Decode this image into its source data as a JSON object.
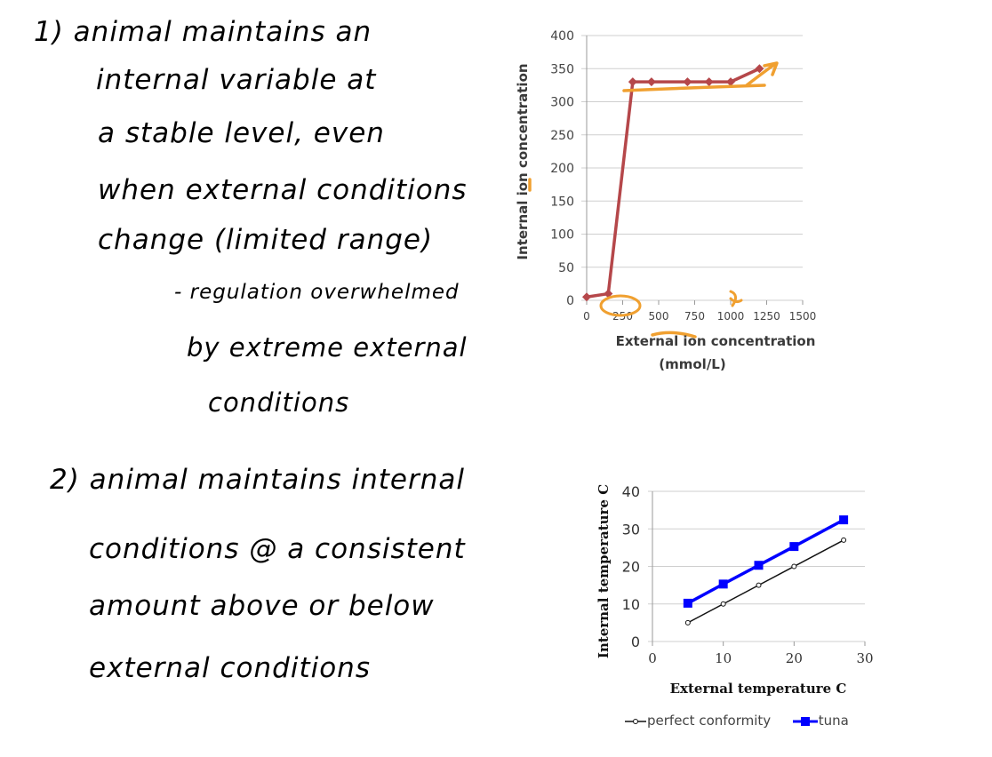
{
  "notes": {
    "block1": [
      "1) animal maintains an",
      "internal variable at",
      "a stable level, even",
      "when external conditions",
      "change (limited range)",
      "- regulation overwhelmed",
      "by extreme external",
      "conditions"
    ],
    "block2": [
      "2) animal maintains internal",
      "conditions @ a consistent",
      "amount above or below",
      "external conditions"
    ]
  },
  "colors": {
    "ion_line": "#b5474a",
    "annotation": "#f0a030",
    "tuna": "#0000ff",
    "conformity": "#111111"
  },
  "chart_data": [
    {
      "type": "line",
      "title": "",
      "xlabel": "External ion concentration (mmol/L)",
      "ylabel": "Internal ion concentration",
      "xlim": [
        0,
        1500
      ],
      "ylim": [
        0,
        400
      ],
      "x_ticks": [
        "0",
        "250",
        "500",
        "750",
        "1000",
        "1250",
        "1500"
      ],
      "y_ticks": [
        "0",
        "50",
        "100",
        "150",
        "200",
        "250",
        "300",
        "350",
        "400"
      ],
      "grid": true,
      "series": [
        {
          "points": [
            [
              0,
              5
            ],
            [
              150,
              10
            ],
            [
              320,
              330
            ],
            [
              450,
              330
            ],
            [
              700,
              330
            ],
            [
              850,
              330
            ],
            [
              1000,
              330
            ],
            [
              1200,
              350
            ]
          ]
        }
      ]
    },
    {
      "type": "line",
      "title": "",
      "xlabel": "External temperature C",
      "ylabel": "Internal temperature C",
      "xlim": [
        0,
        30
      ],
      "ylim": [
        0,
        40
      ],
      "x_ticks": [
        "0",
        "10",
        "20",
        "30"
      ],
      "y_ticks": [
        "0",
        "10",
        "20",
        "30",
        "40"
      ],
      "grid": true,
      "legend_position": "bottom",
      "series": [
        {
          "name": "perfect conformity",
          "points": [
            [
              5,
              5
            ],
            [
              10,
              10
            ],
            [
              15,
              15
            ],
            [
              20,
              20
            ],
            [
              27,
              27
            ]
          ]
        },
        {
          "name": "tuna",
          "points": [
            [
              5,
              10.2
            ],
            [
              10,
              15.3
            ],
            [
              15,
              20.3
            ],
            [
              20,
              25.3
            ],
            [
              27,
              32.4
            ]
          ]
        }
      ]
    }
  ]
}
